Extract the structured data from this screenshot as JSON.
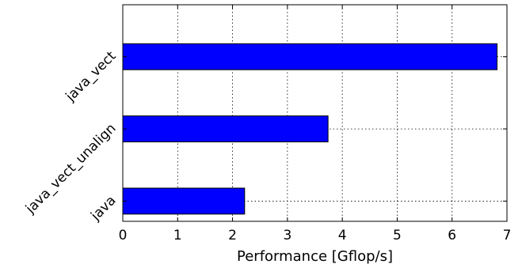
{
  "chart_data": {
    "type": "bar",
    "orientation": "horizontal",
    "categories": [
      "java",
      "java_vect_unalign",
      "java_vect"
    ],
    "values": [
      2.22,
      3.74,
      6.82
    ],
    "title": "",
    "xlabel": "Performance [Gflop/s]",
    "ylabel": "",
    "xlim": [
      0,
      7
    ],
    "xticks": [
      "0",
      "1",
      "2",
      "3",
      "4",
      "5",
      "6",
      "7"
    ],
    "grid": true,
    "legend": "none",
    "colors": {
      "bar": "#0000ff",
      "edge": "#000000",
      "grid": "#000000"
    }
  }
}
